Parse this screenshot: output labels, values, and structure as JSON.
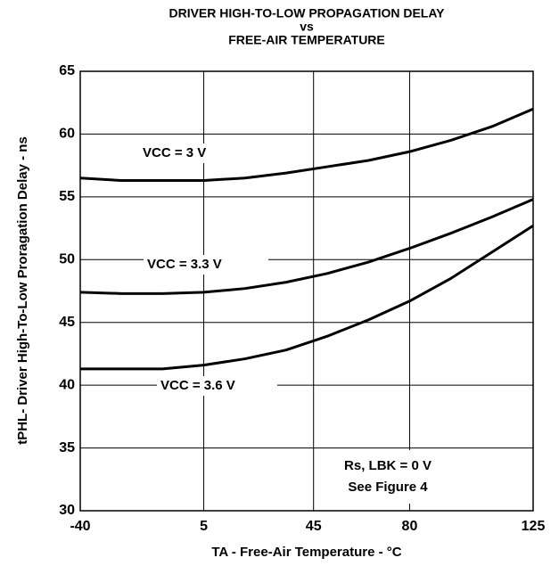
{
  "chart_data": {
    "type": "line",
    "title": [
      "DRIVER HIGH-TO-LOW PROPAGATION DELAY",
      "vs",
      "FREE-AIR TEMPERATURE"
    ],
    "x_label": "TA - Free-Air Temperature - °C",
    "y_label": "tPHL- Driver High-To-Low Proragation Delay - ns",
    "x": [
      -40,
      -25,
      -10,
      5,
      20,
      35,
      50,
      65,
      80,
      95,
      110,
      125
    ],
    "series": [
      {
        "name": "VCC = 3 V",
        "color": "#000000",
        "values": [
          56.5,
          56.3,
          56.3,
          56.3,
          56.5,
          56.9,
          57.4,
          57.9,
          58.6,
          59.5,
          60.6,
          62.0
        ]
      },
      {
        "name": "VCC = 3.3 V",
        "color": "#000000",
        "values": [
          47.4,
          47.3,
          47.3,
          47.4,
          47.7,
          48.2,
          48.9,
          49.8,
          50.9,
          52.1,
          53.4,
          54.8
        ]
      },
      {
        "name": "VCC = 3.6 V",
        "color": "#000000",
        "values": [
          41.3,
          41.3,
          41.3,
          41.6,
          42.1,
          42.8,
          43.9,
          45.2,
          46.7,
          48.5,
          50.6,
          52.7
        ]
      }
    ],
    "xlim": [
      -40,
      125
    ],
    "xticks": [
      -40,
      5,
      45,
      80,
      125
    ],
    "ylim": [
      30,
      65
    ],
    "yticks": [
      30,
      35,
      40,
      45,
      50,
      55,
      60,
      65
    ],
    "grid": true,
    "annotations": [
      "Rs, LBK = 0 V",
      "See Figure 4"
    ]
  }
}
